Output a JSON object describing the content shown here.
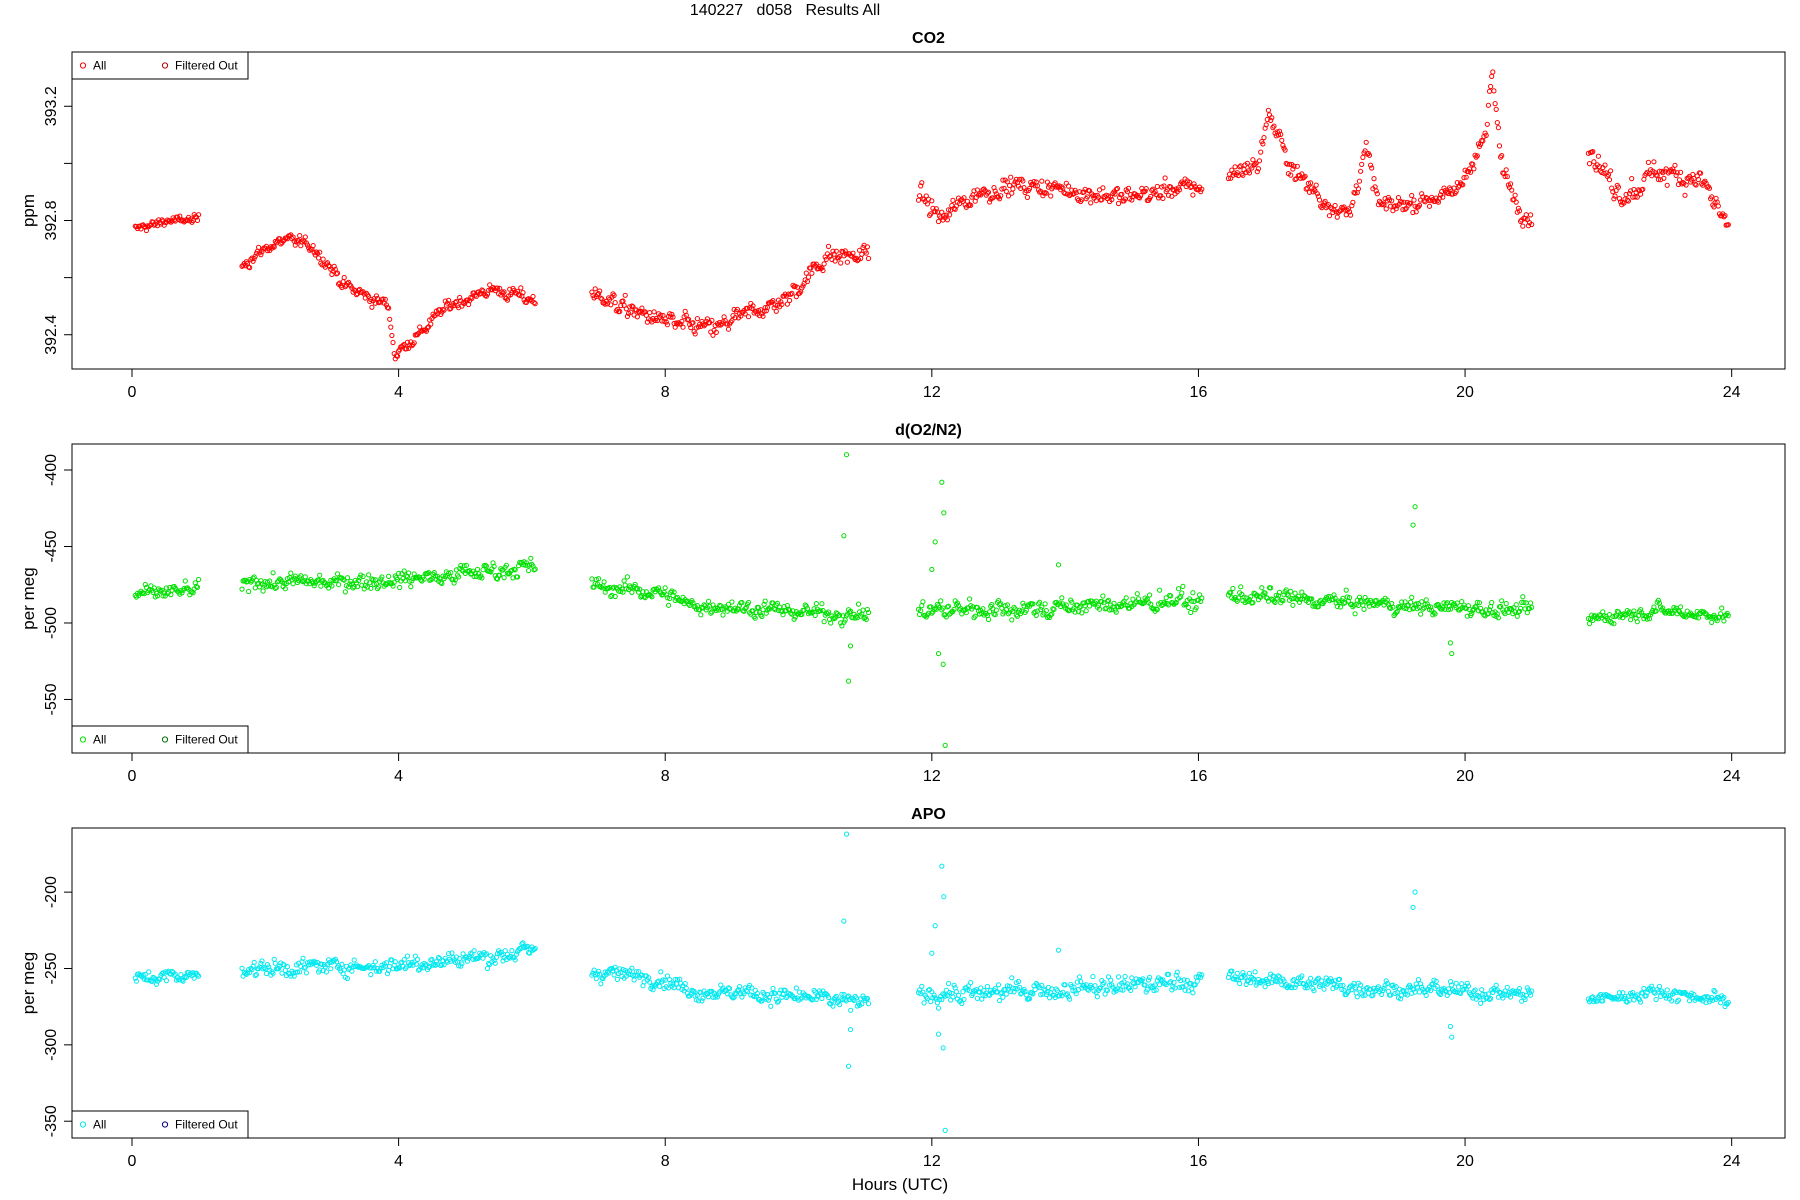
{
  "page": {
    "title": "140227   d058   Results All",
    "xlabel": "Hours (UTC)"
  },
  "chart_data": [
    {
      "type": "scatter",
      "title": "CO2",
      "xlabel": "Hours (UTC)",
      "ylabel": "ppm",
      "xlim": [
        -0.9,
        24.8
      ],
      "ylim": [
        392.28,
        393.39
      ],
      "xticks": [
        0,
        4,
        8,
        12,
        16,
        20,
        24
      ],
      "yticks": [
        392.4,
        392.6,
        392.8,
        393.0,
        393.2
      ],
      "ytick_labels": [
        "392.4",
        "",
        "392.8",
        "",
        "393.2"
      ],
      "color": "#ff0000",
      "legend": {
        "position": "top-left",
        "entries": [
          {
            "label": "All",
            "color": "#ff0000"
          },
          {
            "label": "Filtered Out",
            "color": "#b00000"
          }
        ]
      },
      "segments": [
        {
          "x": [
            0.05,
            1.0
          ],
          "kx": [
            0,
            0.5,
            1
          ],
          "ky": [
            392.77,
            392.8,
            392.8
          ],
          "noise": 0.015
        },
        {
          "x": [
            1.65,
            6.05
          ],
          "kx": [
            0,
            0.15,
            0.25,
            0.35,
            0.5,
            0.52,
            0.6,
            0.7,
            0.85,
            1
          ],
          "ky": [
            392.65,
            392.74,
            392.7,
            392.57,
            392.5,
            392.33,
            392.4,
            392.5,
            392.56,
            392.52
          ],
          "noise": 0.02
        },
        {
          "x": [
            6.9,
            11.05
          ],
          "kx": [
            0,
            0.15,
            0.3,
            0.45,
            0.55,
            0.7,
            0.85,
            1
          ],
          "ky": [
            392.55,
            392.48,
            392.44,
            392.42,
            392.47,
            392.52,
            392.68,
            392.68
          ],
          "noise": 0.03
        },
        {
          "x": [
            11.8,
            16.05
          ],
          "kx": [
            0,
            0.08,
            0.15,
            0.3,
            0.5,
            0.7,
            1
          ],
          "ky": [
            392.9,
            392.8,
            392.87,
            392.92,
            392.91,
            392.88,
            392.92
          ],
          "noise": 0.03
        },
        {
          "x": [
            16.45,
            21.0
          ],
          "kx": [
            0,
            0.1,
            0.13,
            0.2,
            0.3,
            0.4,
            0.45,
            0.5,
            0.6,
            0.75,
            0.85,
            0.87,
            0.9,
            0.95,
            1
          ],
          "ky": [
            392.96,
            393.0,
            393.18,
            393.0,
            392.88,
            392.82,
            393.05,
            392.85,
            392.86,
            392.9,
            393.1,
            393.32,
            393.0,
            392.86,
            392.8
          ],
          "noise": 0.03
        },
        {
          "x": [
            21.85,
            23.95
          ],
          "kx": [
            0,
            0.1,
            0.25,
            0.4,
            0.5,
            0.65,
            0.8,
            1
          ],
          "ky": [
            393.05,
            392.96,
            392.88,
            392.93,
            392.98,
            392.96,
            392.95,
            392.78
          ],
          "noise": 0.04
        }
      ],
      "outliers": []
    },
    {
      "type": "scatter",
      "title": "d(O2/N2)",
      "xlabel": "Hours (UTC)",
      "ylabel": "per meg",
      "xlim": [
        -0.9,
        24.8
      ],
      "ylim": [
        -585,
        -383
      ],
      "xticks": [
        0,
        4,
        8,
        12,
        16,
        20,
        24
      ],
      "yticks": [
        -400,
        -450,
        -500,
        -550
      ],
      "ytick_labels": [
        "-400",
        "-450",
        "-500",
        "-550"
      ],
      "color": "#00e000",
      "legend": {
        "position": "bottom-left",
        "entries": [
          {
            "label": "All",
            "color": "#00e000"
          },
          {
            "label": "Filtered Out",
            "color": "#007000"
          }
        ]
      },
      "segments": [
        {
          "x": [
            0.05,
            1.0
          ],
          "kx": [
            0,
            1
          ],
          "ky": [
            -481,
            -479
          ],
          "noise": 4
        },
        {
          "x": [
            1.65,
            6.05
          ],
          "kx": [
            0,
            0.5,
            1
          ],
          "ky": [
            -474,
            -472,
            -463
          ],
          "noise": 5
        },
        {
          "x": [
            6.9,
            11.05
          ],
          "kx": [
            0,
            0.25,
            0.35,
            0.7,
            1
          ],
          "ky": [
            -476,
            -480,
            -488,
            -492,
            -495
          ],
          "noise": 5
        },
        {
          "x": [
            11.8,
            16.05
          ],
          "kx": [
            0,
            0.5,
            1
          ],
          "ky": [
            -492,
            -490,
            -485
          ],
          "noise": 6
        },
        {
          "x": [
            16.45,
            21.0
          ],
          "kx": [
            0,
            0.5,
            1
          ],
          "ky": [
            -482,
            -488,
            -492
          ],
          "noise": 5
        },
        {
          "x": [
            21.85,
            23.95
          ],
          "kx": [
            0,
            0.5,
            1
          ],
          "ky": [
            -497,
            -491,
            -496
          ],
          "noise": 4
        }
      ],
      "outliers": [
        {
          "x": 10.72,
          "y": -390
        },
        {
          "x": 10.68,
          "y": -443
        },
        {
          "x": 10.78,
          "y": -515
        },
        {
          "x": 10.75,
          "y": -538
        },
        {
          "x": 12.05,
          "y": -447
        },
        {
          "x": 12.0,
          "y": -465
        },
        {
          "x": 12.15,
          "y": -408
        },
        {
          "x": 12.18,
          "y": -428
        },
        {
          "x": 12.1,
          "y": -520
        },
        {
          "x": 12.17,
          "y": -527
        },
        {
          "x": 12.2,
          "y": -580
        },
        {
          "x": 13.9,
          "y": -462
        },
        {
          "x": 19.25,
          "y": -424
        },
        {
          "x": 19.22,
          "y": -436
        },
        {
          "x": 19.8,
          "y": -520
        },
        {
          "x": 19.78,
          "y": -513
        }
      ]
    },
    {
      "type": "scatter",
      "title": "APO",
      "xlabel": "Hours (UTC)",
      "ylabel": "per meg",
      "xlim": [
        -0.9,
        24.8
      ],
      "ylim": [
        -361,
        -158
      ],
      "xticks": [
        0,
        4,
        8,
        12,
        16,
        20,
        24
      ],
      "yticks": [
        -200,
        -250,
        -300,
        -350
      ],
      "ytick_labels": [
        "-200",
        "-250",
        "-300",
        "-350"
      ],
      "color": "#00e8f0",
      "legend": {
        "position": "bottom-left",
        "entries": [
          {
            "label": "All",
            "color": "#00e8f0"
          },
          {
            "label": "Filtered Out",
            "color": "#000080"
          }
        ]
      },
      "segments": [
        {
          "x": [
            0.05,
            1.0
          ],
          "kx": [
            0,
            1
          ],
          "ky": [
            -256,
            -254
          ],
          "noise": 4
        },
        {
          "x": [
            1.65,
            6.05
          ],
          "kx": [
            0,
            0.5,
            1
          ],
          "ky": [
            -250,
            -248,
            -239
          ],
          "noise": 5
        },
        {
          "x": [
            6.9,
            11.05
          ],
          "kx": [
            0,
            0.25,
            0.35,
            0.7,
            1
          ],
          "ky": [
            -252,
            -256,
            -264,
            -268,
            -272
          ],
          "noise": 5
        },
        {
          "x": [
            11.8,
            16.05
          ],
          "kx": [
            0,
            0.5,
            1
          ],
          "ky": [
            -267,
            -264,
            -258
          ],
          "noise": 6
        },
        {
          "x": [
            16.45,
            21.0
          ],
          "kx": [
            0,
            0.5,
            1
          ],
          "ky": [
            -256,
            -263,
            -267
          ],
          "noise": 5
        },
        {
          "x": [
            21.85,
            23.95
          ],
          "kx": [
            0,
            0.5,
            1
          ],
          "ky": [
            -271,
            -265,
            -271
          ],
          "noise": 4
        }
      ],
      "outliers": [
        {
          "x": 10.72,
          "y": -162
        },
        {
          "x": 10.68,
          "y": -219
        },
        {
          "x": 10.78,
          "y": -290
        },
        {
          "x": 10.75,
          "y": -314
        },
        {
          "x": 12.05,
          "y": -222
        },
        {
          "x": 12.0,
          "y": -240
        },
        {
          "x": 12.15,
          "y": -183
        },
        {
          "x": 12.18,
          "y": -203
        },
        {
          "x": 12.1,
          "y": -293
        },
        {
          "x": 12.17,
          "y": -302
        },
        {
          "x": 12.2,
          "y": -356
        },
        {
          "x": 13.9,
          "y": -238
        },
        {
          "x": 19.25,
          "y": -200
        },
        {
          "x": 19.22,
          "y": -210
        },
        {
          "x": 19.8,
          "y": -295
        },
        {
          "x": 19.78,
          "y": -288
        }
      ]
    }
  ]
}
